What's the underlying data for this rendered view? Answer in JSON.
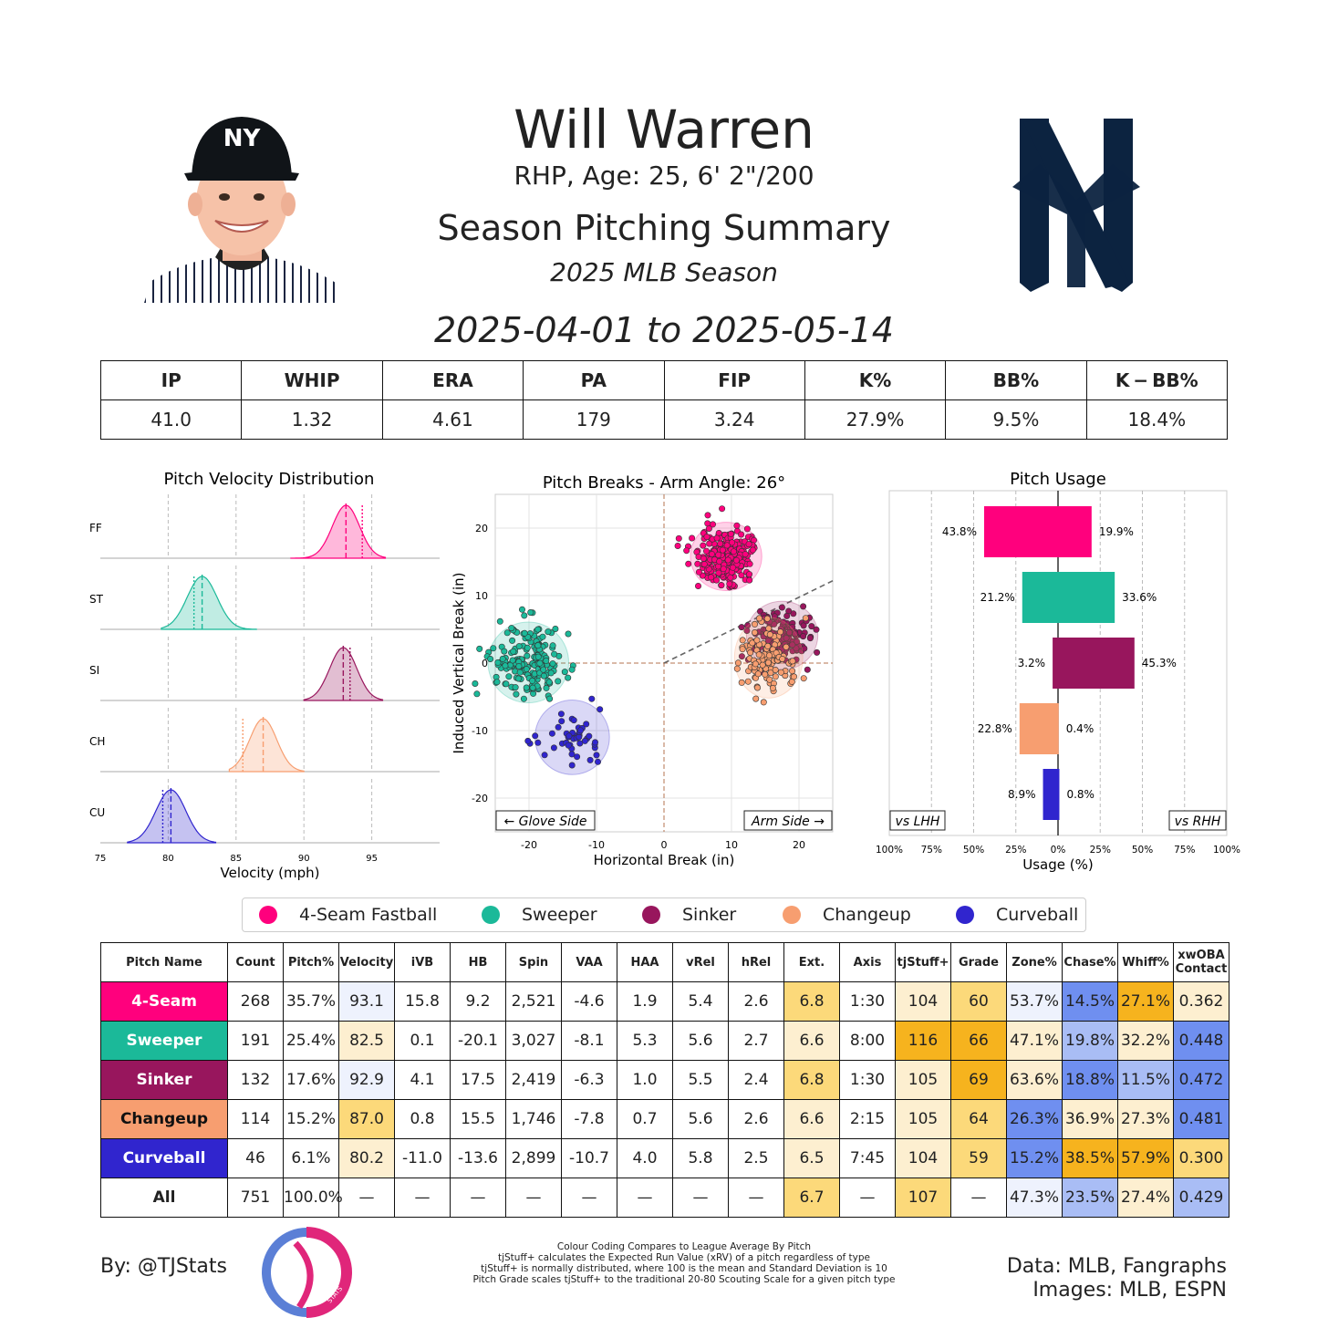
{
  "header": {
    "name": "Will Warren",
    "bio": "RHP, Age: 25, 6' 2\"/200",
    "subtitle": "Season Pitching Summary",
    "season": "2025 MLB Season",
    "dates": "2025-04-01 to 2025-05-14"
  },
  "summary": {
    "headers": [
      "IP",
      "WHIP",
      "ERA",
      "PA",
      "FIP",
      "K%",
      "BB%",
      "K − BB%"
    ],
    "values": [
      "41.0",
      "1.32",
      "4.61",
      "179",
      "3.24",
      "27.9%",
      "9.5%",
      "18.4%"
    ]
  },
  "colors": {
    "FF": "#ff007d",
    "ST": "#1bb999",
    "SI": "#98165d",
    "CH": "#f79e70",
    "CU": "#3025ce",
    "good_light": "#fdefd0",
    "good_mid": "#fcd97a",
    "good_strong": "#f6b31e",
    "bad_light": "#eef2fd",
    "bad_mid": "#a9bdf5",
    "bad_strong": "#6f8ff0"
  },
  "chart_data": [
    {
      "type": "area",
      "title": "Pitch Velocity Distribution",
      "xlabel": "Velocity (mph)",
      "xlim": [
        75,
        100
      ],
      "xticks": [
        75,
        80,
        85,
        90,
        95
      ],
      "series": [
        {
          "name": "FF",
          "min": 89,
          "max": 96,
          "mean": 93.1,
          "sd": 1.0,
          "league": 94.3
        },
        {
          "name": "ST",
          "min": 79.5,
          "max": 86.5,
          "mean": 82.5,
          "sd": 1.1,
          "league": 81.9
        },
        {
          "name": "SI",
          "min": 90,
          "max": 95.8,
          "mean": 92.9,
          "sd": 1.0,
          "league": 93.4
        },
        {
          "name": "CH",
          "min": 84.5,
          "max": 90,
          "mean": 87.0,
          "sd": 1.0,
          "league": 85.5
        },
        {
          "name": "CU",
          "min": 77,
          "max": 83.5,
          "mean": 80.2,
          "sd": 1.1,
          "league": 79.6
        }
      ]
    },
    {
      "type": "scatter",
      "title": "Pitch Breaks - Arm Angle: 26°",
      "xlabel": "Horizontal Break (in)",
      "ylabel": "Induced Vertical Break (in)",
      "xlim": [
        -25,
        25
      ],
      "ylim": [
        -25,
        25
      ],
      "xticks": [
        -20,
        -10,
        0,
        10,
        20
      ],
      "yticks": [
        -20,
        -10,
        0,
        10,
        20
      ],
      "arm_angle_deg": 26,
      "annotations": [
        "← Glove Side",
        "Arm Side →"
      ],
      "series": [
        {
          "name": "FF",
          "cx": 9.2,
          "cy": 15.8,
          "sx": 2.3,
          "sy": 2.2,
          "n": 268
        },
        {
          "name": "ST",
          "cx": -20.1,
          "cy": 0.1,
          "sx": 2.6,
          "sy": 2.6,
          "n": 191
        },
        {
          "name": "SI",
          "cx": 17.5,
          "cy": 4.1,
          "sx": 2.3,
          "sy": 2.2,
          "n": 132
        },
        {
          "name": "CH",
          "cx": 15.5,
          "cy": 0.8,
          "sx": 2.2,
          "sy": 2.6,
          "n": 114
        },
        {
          "name": "CU",
          "cx": -13.6,
          "cy": -11.0,
          "sx": 2.4,
          "sy": 2.4,
          "n": 46
        }
      ]
    },
    {
      "type": "bar",
      "title": "Pitch Usage",
      "xlabel": "Usage (%)",
      "xticks": [
        "100%",
        "75%",
        "50%",
        "25%",
        "0%",
        "25%",
        "50%",
        "75%",
        "100%"
      ],
      "left_label": "vs LHH",
      "right_label": "vs RHH",
      "categories": [
        "FF",
        "ST",
        "SI",
        "CH",
        "CU"
      ],
      "series": [
        {
          "name": "vs LHH",
          "values": [
            43.8,
            21.2,
            3.2,
            22.8,
            8.9
          ],
          "labels": [
            "43.8%",
            "21.2%",
            "3.2%",
            "22.8%",
            "8.9%"
          ]
        },
        {
          "name": "vs RHH",
          "values": [
            19.9,
            33.6,
            45.3,
            0.4,
            0.8
          ],
          "labels": [
            "19.9%",
            "33.6%",
            "45.3%",
            "0.4%",
            "0.8%"
          ]
        }
      ]
    }
  ],
  "legend": [
    {
      "name": "4-Seam Fastball",
      "key": "FF"
    },
    {
      "name": "Sweeper",
      "key": "ST"
    },
    {
      "name": "Sinker",
      "key": "SI"
    },
    {
      "name": "Changeup",
      "key": "CH"
    },
    {
      "name": "Curveball",
      "key": "CU"
    }
  ],
  "table": {
    "headers": [
      "Pitch Name",
      "Count",
      "Pitch%",
      "Velocity",
      "iVB",
      "HB",
      "Spin",
      "VAA",
      "HAA",
      "vRel",
      "hRel",
      "Ext.",
      "Axis",
      "tjStuff+",
      "Grade",
      "Zone%",
      "Chase%",
      "Whiff%",
      "xwOBA\nContact"
    ],
    "rows": [
      {
        "key": "FF",
        "cells": [
          "4-Seam",
          "268",
          "35.7%",
          "93.1",
          "15.8",
          "9.2",
          "2,521",
          "-4.6",
          "1.9",
          "5.4",
          "2.6",
          "6.8",
          "1:30",
          "104",
          "60",
          "53.7%",
          "14.5%",
          "27.1%",
          "0.362"
        ]
      },
      {
        "key": "ST",
        "cells": [
          "Sweeper",
          "191",
          "25.4%",
          "82.5",
          "0.1",
          "-20.1",
          "3,027",
          "-8.1",
          "5.3",
          "5.6",
          "2.7",
          "6.6",
          "8:00",
          "116",
          "66",
          "47.1%",
          "19.8%",
          "32.2%",
          "0.448"
        ]
      },
      {
        "key": "SI",
        "cells": [
          "Sinker",
          "132",
          "17.6%",
          "92.9",
          "4.1",
          "17.5",
          "2,419",
          "-6.3",
          "1.0",
          "5.5",
          "2.4",
          "6.8",
          "1:30",
          "105",
          "69",
          "63.6%",
          "18.8%",
          "11.5%",
          "0.472"
        ]
      },
      {
        "key": "CH",
        "cells": [
          "Changeup",
          "114",
          "15.2%",
          "87.0",
          "0.8",
          "15.5",
          "1,746",
          "-7.8",
          "0.7",
          "5.6",
          "2.6",
          "6.6",
          "2:15",
          "105",
          "64",
          "26.3%",
          "36.9%",
          "27.3%",
          "0.481"
        ]
      },
      {
        "key": "CU",
        "cells": [
          "Curveball",
          "46",
          "6.1%",
          "80.2",
          "-11.0",
          "-13.6",
          "2,899",
          "-10.7",
          "4.0",
          "5.8",
          "2.5",
          "6.5",
          "7:45",
          "104",
          "59",
          "15.2%",
          "38.5%",
          "57.9%",
          "0.300"
        ]
      },
      {
        "key": "ALL",
        "cells": [
          "All",
          "751",
          "100.0%",
          "—",
          "—",
          "—",
          "—",
          "—",
          "—",
          "—",
          "—",
          "6.7",
          "—",
          "107",
          "—",
          "47.3%",
          "23.5%",
          "27.4%",
          "0.429"
        ]
      }
    ],
    "shading": [
      [
        "",
        "",
        "",
        "bad_light",
        "",
        "",
        "",
        "",
        "",
        "",
        "",
        "good_mid",
        "",
        "good_light",
        "good_mid",
        "bad_light",
        "bad_strong",
        "good_strong",
        "good_light"
      ],
      [
        "",
        "",
        "",
        "good_light",
        "",
        "",
        "",
        "",
        "",
        "",
        "",
        "good_light",
        "",
        "good_strong",
        "good_strong",
        "good_light",
        "bad_mid",
        "good_light",
        "bad_strong"
      ],
      [
        "",
        "",
        "",
        "bad_light",
        "",
        "",
        "",
        "",
        "",
        "",
        "",
        "good_mid",
        "",
        "good_light",
        "good_strong",
        "good_light",
        "bad_strong",
        "bad_mid",
        "bad_strong"
      ],
      [
        "",
        "",
        "",
        "good_mid",
        "",
        "",
        "",
        "",
        "",
        "",
        "",
        "good_light",
        "",
        "good_light",
        "good_mid",
        "bad_strong",
        "good_light",
        "good_light",
        "bad_strong"
      ],
      [
        "",
        "",
        "",
        "good_light",
        "",
        "",
        "",
        "",
        "",
        "",
        "",
        "good_light",
        "",
        "good_light",
        "good_mid",
        "bad_strong",
        "good_strong",
        "good_strong",
        "good_mid"
      ],
      [
        "",
        "",
        "",
        "",
        "",
        "",
        "",
        "",
        "",
        "",
        "",
        "good_mid",
        "",
        "good_mid",
        "",
        "bad_light",
        "bad_mid",
        "good_light",
        "bad_mid"
      ]
    ]
  },
  "footer": {
    "by": "By: @TJStats",
    "notes": [
      "Colour Coding Compares to League Average By Pitch",
      "tjStuff+ calculates the Expected Run Value (xRV) of a pitch regardless of type",
      "tjStuff+ is normally distributed, where 100 is the mean and Standard Deviation is 10",
      "Pitch Grade scales tjStuff+ to the traditional 20-80 Scouting Scale for a given pitch type"
    ],
    "data_source": "Data: MLB, Fangraphs",
    "image_source": "Images: MLB, ESPN",
    "logo_text": "STATS"
  }
}
